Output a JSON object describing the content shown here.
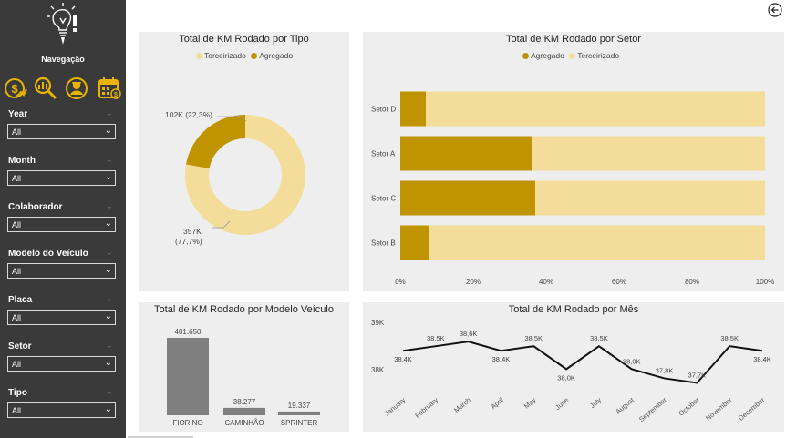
{
  "sidebar": {
    "title": "Navegação",
    "nav_icons": [
      "finance-icon",
      "analytics-icon",
      "driver-icon",
      "calendar-money-icon"
    ],
    "filters": [
      {
        "label": "Year",
        "value": "All"
      },
      {
        "label": "Month",
        "value": "All"
      },
      {
        "label": "Colaborador",
        "value": "All"
      },
      {
        "label": "Modelo do Veículo",
        "value": "All"
      },
      {
        "label": "Placa",
        "value": "All"
      },
      {
        "label": "Setor",
        "value": "All"
      },
      {
        "label": "Tipo",
        "value": "All"
      }
    ]
  },
  "colors": {
    "dark_gold": "#c09300",
    "light_gold": "#f4dd9a",
    "gray_bar": "#7f7f7f",
    "sidebar": "#3a3a3a"
  },
  "chart_data": [
    {
      "type": "pie",
      "title": "Total de KM Rodado por Tipo",
      "legend": [
        "Terceirizado",
        "Agregado"
      ],
      "slices": [
        {
          "name": "Terceirizado",
          "label": "357K",
          "pct": "(77,7%)",
          "value": 357
        },
        {
          "name": "Agregado",
          "label": "102K (22,3%)",
          "value": 102
        }
      ]
    },
    {
      "type": "bar",
      "title": "Total de KM Rodado por Setor",
      "legend": [
        "Agregado",
        "Terceirizado"
      ],
      "categories": [
        "Setor D",
        "Setor A",
        "Setor C",
        "Setor B"
      ],
      "series": [
        {
          "name": "Agregado",
          "values": [
            7,
            36,
            37,
            8
          ]
        },
        {
          "name": "Terceirizado",
          "values": [
            93,
            64,
            63,
            92
          ]
        }
      ],
      "xticks": [
        "0%",
        "20%",
        "40%",
        "60%",
        "80%",
        "100%"
      ],
      "xlim": [
        0,
        100
      ]
    },
    {
      "type": "bar",
      "title": "Total de KM Rodado por Modelo Veículo",
      "categories": [
        "FIORINO",
        "CAMINHÃO",
        "SPRINTER"
      ],
      "values": [
        401650,
        38277,
        19337
      ],
      "labels": [
        "401.650",
        "38.277",
        "19.337"
      ]
    },
    {
      "type": "line",
      "title": "Total de KM Rodado por Mês",
      "categories": [
        "January",
        "February",
        "March",
        "April",
        "May",
        "June",
        "July",
        "August",
        "September",
        "October",
        "November",
        "December"
      ],
      "values": [
        38.4,
        38.5,
        38.6,
        38.4,
        38.5,
        38.0,
        38.5,
        38.0,
        37.8,
        37.7,
        38.5,
        38.4
      ],
      "labels": [
        "38,4K",
        "38,5K",
        "38,6K",
        "38,4K",
        "38,5K",
        "38,0K",
        "38,5K",
        "38,0K",
        "37,8K",
        "37,7K",
        "38,5K",
        "38,4K"
      ],
      "yticks": [
        "39K",
        "38K"
      ],
      "ylim": [
        37.65,
        39.0
      ]
    }
  ]
}
